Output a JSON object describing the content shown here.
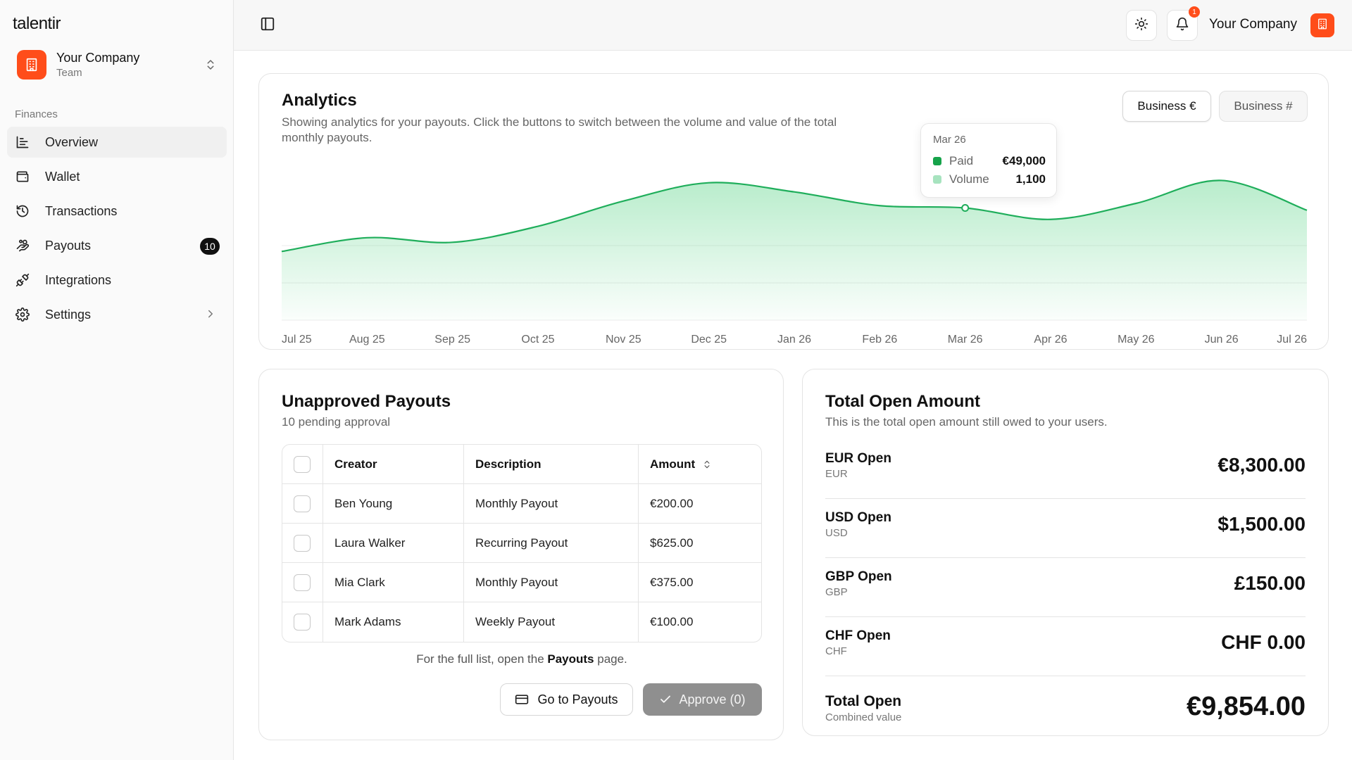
{
  "sidebar": {
    "brand": "talentir",
    "company": {
      "name": "Your Company",
      "subtitle": "Team"
    },
    "section_label": "Finances",
    "items": [
      {
        "label": "Overview",
        "icon": "chart-icon",
        "active": true
      },
      {
        "label": "Wallet",
        "icon": "wallet-icon"
      },
      {
        "label": "Transactions",
        "icon": "history-icon"
      },
      {
        "label": "Payouts",
        "icon": "hand-coins-icon",
        "badge": "10"
      },
      {
        "label": "Integrations",
        "icon": "plug-icon"
      },
      {
        "label": "Settings",
        "icon": "gear-icon"
      }
    ]
  },
  "topbar": {
    "notification_count": "1",
    "company_name": "Your Company"
  },
  "analytics": {
    "title": "Analytics",
    "subtitle": "Showing analytics for your payouts. Click the buttons to switch between the volume and value of the total monthly payouts.",
    "toggle_value": "Business €",
    "toggle_volume": "Business #",
    "tooltip": {
      "date": "Mar 26",
      "rows": [
        {
          "label": "Paid",
          "value": "€49,000"
        },
        {
          "label": "Volume",
          "value": "1,100"
        }
      ]
    }
  },
  "chart_data": {
    "type": "area",
    "x": [
      "Jul 25",
      "Aug 25",
      "Sep 25",
      "Oct 25",
      "Nov 25",
      "Dec 25",
      "Jan 26",
      "Feb 26",
      "Mar 26",
      "Apr 26",
      "May 26",
      "Jun 26",
      "Jul 26"
    ],
    "series": [
      {
        "name": "Paid",
        "values": [
          30000,
          36000,
          34000,
          41000,
          52000,
          60000,
          56000,
          50000,
          49000,
          44000,
          51000,
          61000,
          48000
        ]
      }
    ],
    "highlight": {
      "x": "Mar 26",
      "value": 49000
    },
    "ylim": [
      0,
      100000
    ],
    "grid": true,
    "colors": {
      "line": "#1fae5b",
      "fill": "#22c55e",
      "paid": "#16a34a",
      "volume": "#a7e3bf"
    }
  },
  "unapproved": {
    "title": "Unapproved Payouts",
    "subtitle": "10 pending approval",
    "columns": {
      "creator": "Creator",
      "description": "Description",
      "amount": "Amount"
    },
    "rows": [
      {
        "creator": "Ben Young",
        "description": "Monthly Payout",
        "amount": "€200.00"
      },
      {
        "creator": "Laura Walker",
        "description": "Recurring Payout",
        "amount": "$625.00"
      },
      {
        "creator": "Mia Clark",
        "description": "Monthly Payout",
        "amount": "€375.00"
      },
      {
        "creator": "Mark Adams",
        "description": "Weekly Payout",
        "amount": "€100.00"
      }
    ],
    "note_prefix": "For the full list, open the ",
    "note_link": "Payouts",
    "note_suffix": " page.",
    "go_button": "Go to Payouts",
    "approve_button": "Approve (0)"
  },
  "totals": {
    "title": "Total Open Amount",
    "subtitle": "This is the total open amount still owed to your users.",
    "rows": [
      {
        "label": "EUR Open",
        "code": "EUR",
        "value": "€8,300.00"
      },
      {
        "label": "USD Open",
        "code": "USD",
        "value": "$1,500.00"
      },
      {
        "label": "GBP Open",
        "code": "GBP",
        "value": "£150.00"
      },
      {
        "label": "CHF Open",
        "code": "CHF",
        "value": "CHF 0.00"
      }
    ],
    "total": {
      "label": "Total Open",
      "code": "Combined value",
      "value": "€9,854.00"
    }
  },
  "colors": {
    "brand": "#ff4d1a",
    "badge": "#111111",
    "approve_disabled": "#8f8f8f"
  }
}
